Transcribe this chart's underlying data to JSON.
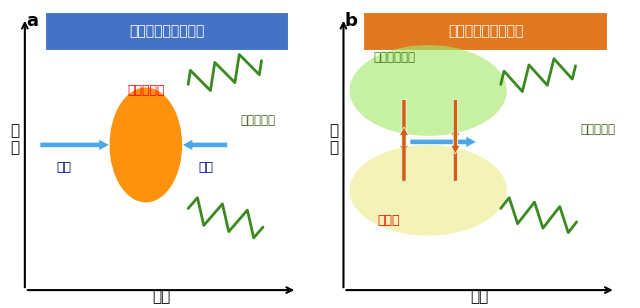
{
  "panel_a": {
    "label": "a",
    "title": "加速減速メカニズム",
    "title_bg": "#4472c4",
    "title_color": "#ffffff",
    "ylabel": "高\n度",
    "xlabel": "経度",
    "ellipse_color": "#ff8c00",
    "ellipse_label": "大気の圧縮",
    "ellipse_label_color": "#ff0000",
    "arrow_left_label": "加速",
    "arrow_right_label": "減速",
    "wave_label": "大気重力波",
    "arrow_color": "#4da6e8"
  },
  "panel_b": {
    "label": "b",
    "title": "山岳波的メカニズム",
    "title_bg": "#e07820",
    "title_color": "#ffffff",
    "ylabel": "高\n度",
    "xlabel": "経度",
    "blob_color_top": "#a8e870",
    "blob_color_bot": "#f0f0a0",
    "text_top": "温位面の歪み",
    "text_top_color": "#3a7a10",
    "text_bot": "鉛直流",
    "text_bot_color": "#ff0000",
    "wave_label": "大気重力波",
    "arrow_color": "#4da6e8",
    "vert_arrow_color": "#d06010"
  },
  "bg_color": "#ffffff",
  "wave_color": "#3a8a20",
  "wave_label_color": "#3a6010"
}
